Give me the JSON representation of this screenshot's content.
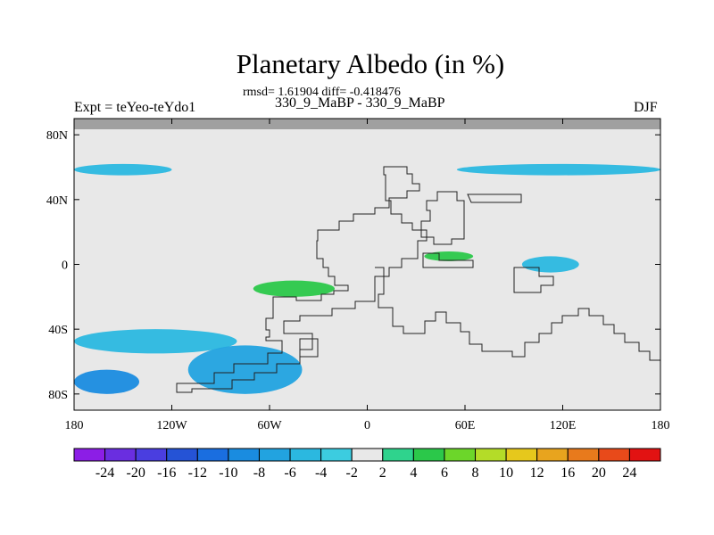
{
  "chart_data": {
    "type": "heatmap",
    "title": "Planetary Albedo (in %)",
    "stats_line": "rmsd= 1.61904 diff= -0.418476",
    "subtitle": "330_9_MaBP - 330_9_MaBP",
    "left_label": "Expt = teYeo-teYdo1",
    "right_label": "DJF",
    "x_range": [
      -180,
      180
    ],
    "y_range": [
      -90,
      90
    ],
    "x_ticks": [
      {
        "value": -180,
        "label": "180"
      },
      {
        "value": -120,
        "label": "120W"
      },
      {
        "value": -60,
        "label": "60W"
      },
      {
        "value": 0,
        "label": "0"
      },
      {
        "value": 60,
        "label": "60E"
      },
      {
        "value": 120,
        "label": "120E"
      },
      {
        "value": 180,
        "label": "180"
      }
    ],
    "y_ticks": [
      {
        "value": 80,
        "label": "80N"
      },
      {
        "value": 40,
        "label": "40N"
      },
      {
        "value": 0,
        "label": "0"
      },
      {
        "value": -40,
        "label": "40S"
      },
      {
        "value": -80,
        "label": "80S"
      }
    ],
    "colorbar": {
      "levels": [
        "-24",
        "-20",
        "-16",
        "-12",
        "-10",
        "-8",
        "-6",
        "-4",
        "-2",
        "2",
        "4",
        "6",
        "8",
        "10",
        "12",
        "16",
        "20",
        "24"
      ],
      "colors": [
        "#8c1ee6",
        "#6a2ee0",
        "#4a3ee0",
        "#2553d6",
        "#1a6ee0",
        "#1a8ce0",
        "#22a3e0",
        "#2bb8e0",
        "#3ccce0",
        "#e8e8e8",
        "#2fd38d",
        "#2bc84a",
        "#6cd62a",
        "#b4dc28",
        "#e6c81c",
        "#e8a41e",
        "#e87a1c",
        "#e84a1a",
        "#e21212"
      ]
    },
    "features": [
      {
        "desc": "pacific-nh-band",
        "value": -6,
        "lon": [
          -180,
          -120
        ],
        "lat": [
          55,
          62
        ]
      },
      {
        "desc": "southern-ocean-band",
        "value": -6,
        "lon": [
          -180,
          -80
        ],
        "lat": [
          -55,
          -40
        ]
      },
      {
        "desc": "antarctic-margin",
        "value": -10,
        "lon": [
          -180,
          -140
        ],
        "lat": [
          -80,
          -65
        ]
      },
      {
        "desc": "drake-passage",
        "value": -8,
        "lon": [
          -110,
          -40
        ],
        "lat": [
          -80,
          -50
        ]
      },
      {
        "desc": "nh-mid-east",
        "value": -6,
        "lon": [
          55,
          180
        ],
        "lat": [
          55,
          62
        ]
      },
      {
        "desc": "tropical-west-pacific",
        "value": 4,
        "lon": [
          -70,
          -20
        ],
        "lat": [
          -20,
          -10
        ]
      },
      {
        "desc": "tropical-africa",
        "value": 4,
        "lon": [
          35,
          65
        ],
        "lat": [
          2,
          8
        ]
      },
      {
        "desc": "eastern-warm-pool",
        "value": -6,
        "lon": [
          95,
          130
        ],
        "lat": [
          -5,
          5
        ]
      }
    ]
  }
}
